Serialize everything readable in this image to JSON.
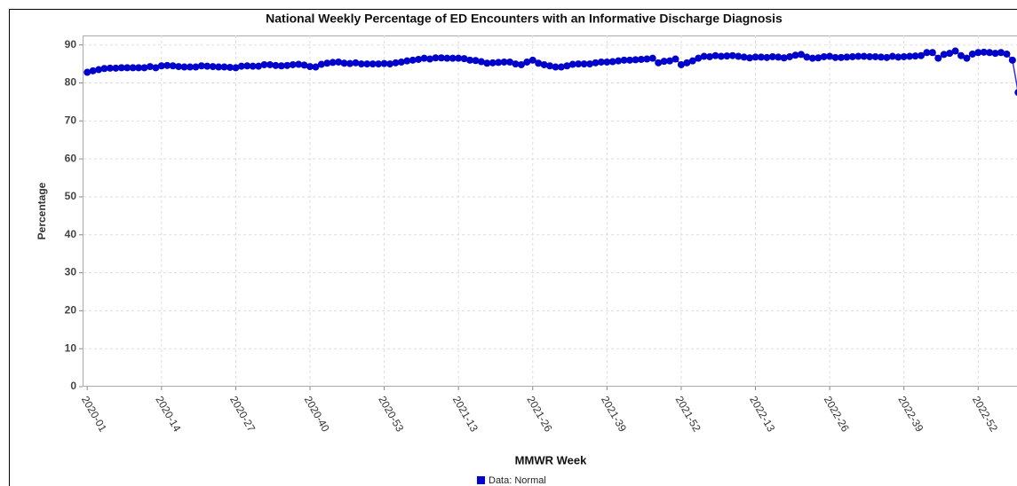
{
  "chart_data": {
    "type": "line",
    "title": "National Weekly Percentage of ED Encounters with an Informative Discharge Diagnosis",
    "x_label": "MMWR Week",
    "y_label": "Percentage",
    "categories": [
      "2020-01",
      null,
      null,
      null,
      null,
      null,
      null,
      null,
      null,
      null,
      null,
      null,
      null,
      "2020-14",
      null,
      null,
      null,
      null,
      null,
      null,
      null,
      null,
      null,
      null,
      null,
      null,
      "2020-27",
      null,
      null,
      null,
      null,
      null,
      null,
      null,
      null,
      null,
      null,
      null,
      null,
      "2020-40",
      null,
      null,
      null,
      null,
      null,
      null,
      null,
      null,
      null,
      null,
      null,
      null,
      "2020-53",
      null,
      null,
      null,
      null,
      null,
      null,
      null,
      null,
      null,
      null,
      null,
      null,
      "2021-13",
      null,
      null,
      null,
      null,
      null,
      null,
      null,
      null,
      null,
      null,
      null,
      null,
      "2021-26",
      null,
      null,
      null,
      null,
      null,
      null,
      null,
      null,
      null,
      null,
      null,
      null,
      "2021-39",
      null,
      null,
      null,
      null,
      null,
      null,
      null,
      null,
      null,
      null,
      null,
      null,
      "2021-52",
      null,
      null,
      null,
      null,
      null,
      null,
      null,
      null,
      null,
      null,
      null,
      null,
      "2022-13",
      null,
      null,
      null,
      null,
      null,
      null,
      null,
      null,
      null,
      null,
      null,
      null,
      "2022-26",
      null,
      null,
      null,
      null,
      null,
      null,
      null,
      null,
      null,
      null,
      null,
      null,
      "2022-39",
      null,
      null,
      null,
      null,
      null,
      null,
      null,
      null,
      null,
      null,
      null,
      null,
      "2022-52",
      null,
      null,
      null,
      null,
      null,
      null,
      null
    ],
    "series": [
      {
        "name": "Data: Normal",
        "color": "#0000cc",
        "line_color": "#3333dd",
        "values": [
          82.8,
          83.2,
          83.5,
          83.8,
          83.9,
          83.9,
          84.0,
          84.0,
          84.0,
          84.0,
          84.0,
          84.3,
          84.0,
          84.5,
          84.6,
          84.5,
          84.3,
          84.2,
          84.2,
          84.2,
          84.5,
          84.4,
          84.3,
          84.2,
          84.2,
          84.1,
          84.0,
          84.4,
          84.5,
          84.4,
          84.4,
          84.8,
          84.8,
          84.6,
          84.5,
          84.6,
          84.8,
          84.9,
          84.7,
          84.3,
          84.2,
          84.9,
          85.2,
          85.4,
          85.5,
          85.2,
          85.1,
          85.3,
          85.0,
          85.0,
          85.0,
          85.0,
          85.1,
          85.0,
          85.3,
          85.5,
          85.8,
          86.0,
          86.2,
          86.5,
          86.3,
          86.6,
          86.6,
          86.5,
          86.5,
          86.5,
          86.4,
          86.0,
          85.9,
          85.6,
          85.2,
          85.3,
          85.4,
          85.5,
          85.5,
          85.0,
          84.8,
          85.5,
          86.0,
          85.2,
          84.8,
          84.5,
          84.2,
          84.2,
          84.5,
          84.9,
          85.0,
          85.0,
          85.0,
          85.3,
          85.5,
          85.5,
          85.6,
          85.8,
          86.0,
          86.0,
          86.1,
          86.2,
          86.3,
          86.5,
          85.3,
          85.7,
          85.8,
          86.3,
          84.8,
          85.3,
          85.8,
          86.5,
          87.0,
          86.9,
          87.2,
          87.0,
          87.1,
          87.2,
          87.0,
          86.8,
          86.6,
          86.8,
          86.8,
          86.7,
          86.9,
          86.8,
          86.6,
          86.9,
          87.3,
          87.5,
          86.8,
          86.5,
          86.6,
          86.9,
          87.0,
          86.7,
          86.7,
          86.8,
          86.9,
          87.0,
          87.0,
          86.9,
          86.9,
          86.8,
          86.7,
          87.0,
          86.8,
          86.9,
          87.0,
          87.1,
          87.2,
          88.0,
          88.0,
          86.5,
          87.5,
          87.8,
          88.4,
          87.2,
          86.5,
          87.6,
          88.0,
          88.1,
          88.0,
          87.8,
          88.0,
          87.6,
          86.0,
          77.5
        ]
      }
    ],
    "ylim": [
      0,
      92.5
    ],
    "yticks": [
      0,
      10,
      20,
      30,
      40,
      50,
      60,
      70,
      80,
      90
    ],
    "grid": true,
    "legend": "bottom"
  }
}
